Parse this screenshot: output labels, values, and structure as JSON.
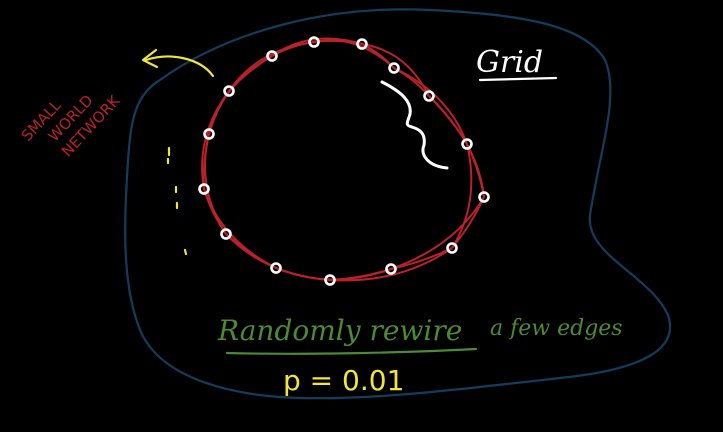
{
  "labels": {
    "small_world_line1": "SMALL",
    "small_world_line2": "WORLD",
    "small_world_line3": "NETWORK",
    "grid": "Grid",
    "randomly_rewire": "Randomly rewire",
    "a_few_edges": "a few edges",
    "probability": "p = 0.01"
  },
  "colors": {
    "boundary": "#123d5c",
    "ring_edges": "#b8222a",
    "nodes": "#ffffff",
    "arrow": "#f1e43a",
    "dots": "#f1e43a",
    "green_text": "#4c8a35",
    "grid_text": "#ffffff"
  },
  "graph": {
    "node_count": 16
  }
}
